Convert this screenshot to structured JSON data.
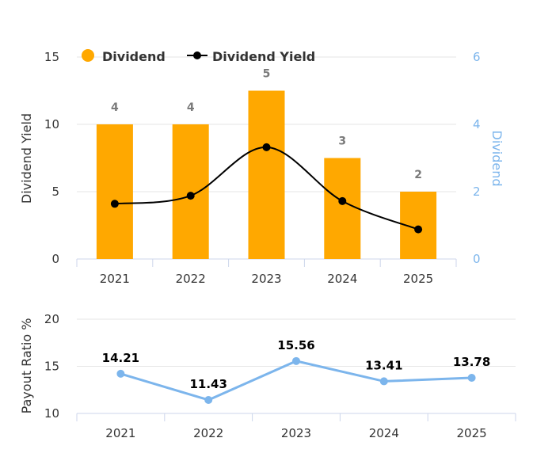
{
  "chart_data": [
    {
      "type": "bar",
      "categories": [
        "2021",
        "2022",
        "2023",
        "2024",
        "2025"
      ],
      "series": [
        {
          "name": "Dividend",
          "kind": "bar",
          "axis": "right",
          "values": [
            4,
            4,
            5,
            3,
            2
          ],
          "data_labels": [
            "4",
            "4",
            "5",
            "3",
            "2"
          ],
          "color": "#ffa800"
        },
        {
          "name": "Dividend Yield",
          "kind": "spline",
          "axis": "left",
          "values": [
            4.1,
            4.7,
            8.3,
            4.3,
            2.2
          ],
          "color": "#000000"
        }
      ],
      "ylabel": "Dividend Yield",
      "ylabel_right": "Dividend",
      "ylim": [
        0,
        15
      ],
      "ylim_right": [
        0,
        6
      ],
      "yticks": [
        "0",
        "5",
        "10",
        "15"
      ],
      "yticks_right": [
        "0",
        "2",
        "4",
        "6"
      ],
      "legend": {
        "placement": "top-left",
        "items": [
          "Dividend",
          "Dividend Yield"
        ]
      },
      "grid": true,
      "colors": {
        "grid": "#e6e6e6",
        "axis": "#ccd6eb",
        "right_axis": "#7cb5ec"
      }
    },
    {
      "type": "line",
      "categories": [
        "2021",
        "2022",
        "2023",
        "2024",
        "2025"
      ],
      "series": [
        {
          "kind": "line",
          "values": [
            14.21,
            11.43,
            15.56,
            13.41,
            13.78
          ],
          "data_labels": [
            "14.21",
            "11.43",
            "15.56",
            "13.41",
            "13.78"
          ],
          "color": "#7cb5ec"
        }
      ],
      "ylabel": "Payout Ratio %",
      "ylim": [
        10,
        20
      ],
      "yticks": [
        "10",
        "15",
        "20"
      ],
      "grid": true
    }
  ]
}
